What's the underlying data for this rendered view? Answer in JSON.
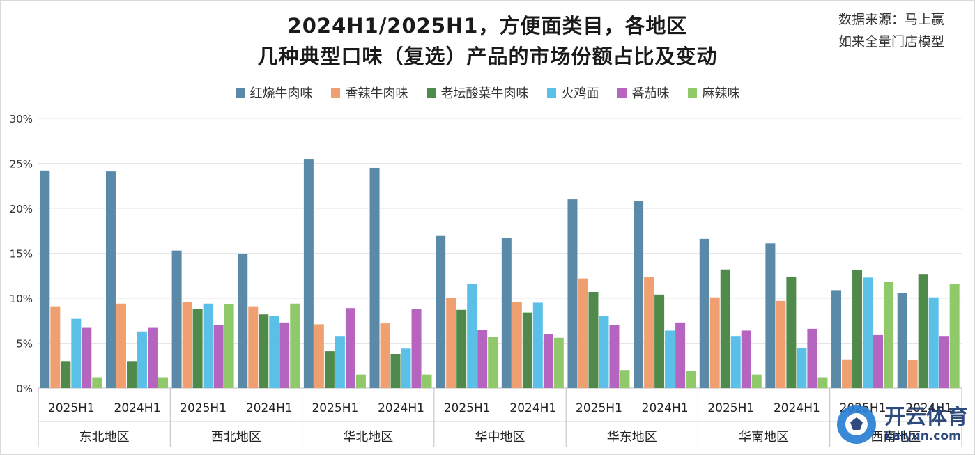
{
  "title_line1": "2024H1/2025H1，方便面类目，各地区",
  "title_line2": "几种典型口味（复选）产品的市场份额占比及变动",
  "source_line1": "数据来源：马上赢",
  "source_line2": "如来全量门店模型",
  "watermark": {
    "cn": "开云体育",
    "en": "kaiyun.com"
  },
  "chart_data": {
    "type": "bar",
    "title": "2024H1/2025H1，方便面类目，各地区几种典型口味（复选）产品的市场份额占比及变动",
    "ylim": [
      0,
      30
    ],
    "y_ticks": [
      "0%",
      "5%",
      "10%",
      "15%",
      "20%",
      "25%",
      "30%"
    ],
    "grid": true,
    "legend_position": "top",
    "regions": [
      "东北地区",
      "西北地区",
      "华北地区",
      "华中地区",
      "华东地区",
      "华南地区",
      "西南地区"
    ],
    "periods": [
      "2025H1",
      "2024H1"
    ],
    "series": [
      {
        "name": "红烧牛肉味",
        "color": "#5b8aa8",
        "values": [
          24.2,
          24.1,
          15.3,
          14.9,
          25.5,
          24.5,
          17.0,
          16.7,
          21.0,
          20.8,
          16.6,
          16.1,
          10.9,
          10.6
        ]
      },
      {
        "name": "香辣牛肉味",
        "color": "#f0a070",
        "values": [
          9.1,
          9.4,
          9.6,
          9.1,
          7.1,
          7.2,
          10.0,
          9.6,
          12.2,
          12.4,
          10.1,
          9.7,
          3.2,
          3.1
        ]
      },
      {
        "name": "老坛酸菜牛肉味",
        "color": "#4f8a4a",
        "values": [
          3.0,
          3.0,
          8.8,
          8.2,
          4.1,
          3.8,
          8.7,
          8.4,
          10.7,
          10.4,
          13.2,
          12.4,
          13.1,
          12.7
        ]
      },
      {
        "name": "火鸡面",
        "color": "#5bc0e8",
        "values": [
          7.7,
          6.3,
          9.4,
          8.0,
          5.8,
          4.4,
          11.6,
          9.5,
          8.0,
          6.4,
          5.8,
          4.5,
          12.3,
          10.1
        ]
      },
      {
        "name": "番茄味",
        "color": "#b565c0",
        "values": [
          6.7,
          6.7,
          7.0,
          7.3,
          8.9,
          8.8,
          6.5,
          6.0,
          7.0,
          7.3,
          6.4,
          6.6,
          5.9,
          5.8
        ]
      },
      {
        "name": "麻辣味",
        "color": "#8fc96a",
        "values": [
          1.2,
          1.2,
          9.3,
          9.4,
          1.5,
          1.5,
          5.7,
          5.6,
          2.0,
          1.9,
          1.5,
          1.2,
          11.8,
          11.6
        ]
      }
    ]
  }
}
